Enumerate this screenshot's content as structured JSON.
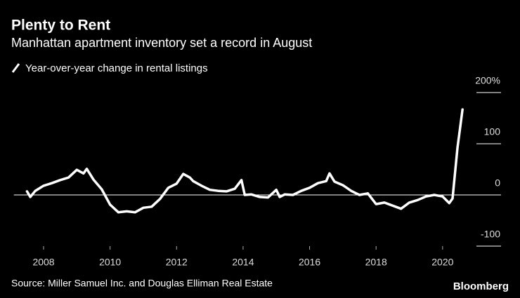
{
  "chart_data": {
    "type": "line",
    "title": "Plenty to Rent",
    "subtitle": "Manhattan apartment inventory set a record in August",
    "source": "Source: Miller Samuel Inc. and Douglas Elliman Real Estate",
    "brand": "Bloomberg",
    "x": [
      2007.5,
      2007.6,
      2007.75,
      2008,
      2008.25,
      2008.5,
      2008.75,
      2009,
      2009.2,
      2009.3,
      2009.5,
      2009.75,
      2010,
      2010.25,
      2010.5,
      2010.75,
      2011,
      2011.25,
      2011.5,
      2011.75,
      2012,
      2012.2,
      2012.4,
      2012.5,
      2012.75,
      2013,
      2013.25,
      2013.5,
      2013.75,
      2013.95,
      2014.05,
      2014.25,
      2014.5,
      2014.75,
      2015,
      2015.1,
      2015.25,
      2015.5,
      2015.75,
      2016,
      2016.25,
      2016.5,
      2016.6,
      2016.75,
      2017,
      2017.25,
      2017.5,
      2017.75,
      2018,
      2018.25,
      2018.5,
      2018.75,
      2019,
      2019.25,
      2019.5,
      2019.75,
      2020,
      2020.2,
      2020.3,
      2020.45,
      2020.6
    ],
    "series": [
      {
        "name": "Year-over-year change in rental listings",
        "color": "#ffffff",
        "values": [
          7,
          -4,
          8,
          18,
          23,
          29,
          34,
          49,
          42,
          51,
          30,
          11,
          -19,
          -34,
          -32,
          -34,
          -25,
          -23,
          -8,
          14,
          22,
          41,
          34,
          27,
          18,
          10,
          8,
          7,
          12,
          29,
          0,
          1,
          -4,
          -5,
          10,
          -4,
          1,
          0,
          8,
          14,
          23,
          27,
          42,
          26,
          19,
          8,
          0,
          3,
          -18,
          -15,
          -21,
          -27,
          -15,
          -10,
          -3,
          0,
          -3,
          -16,
          -7,
          93,
          167
        ]
      }
    ],
    "xlim": [
      2007,
      2021.8
    ],
    "xticks": [
      2008,
      2010,
      2012,
      2014,
      2016,
      2018,
      2020
    ],
    "ylim": [
      -100,
      200
    ],
    "yticks": [
      -100,
      0,
      100,
      {
        "value": 200,
        "label": "200%"
      }
    ]
  }
}
